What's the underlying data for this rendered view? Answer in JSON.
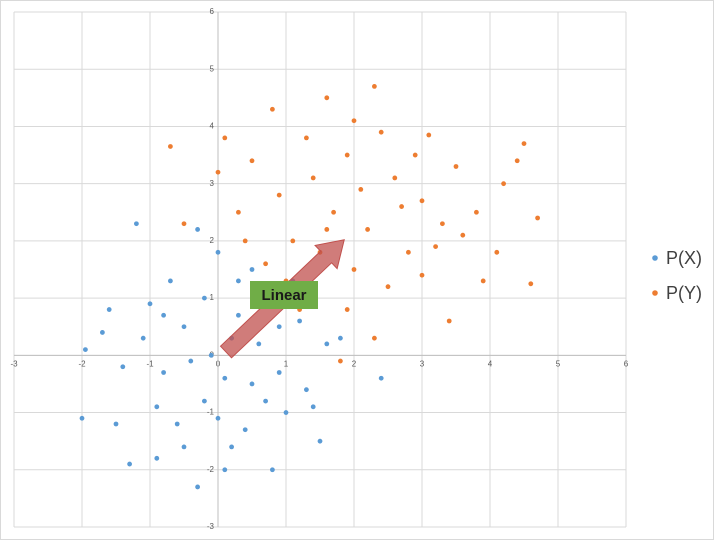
{
  "chart_data": {
    "type": "scatter",
    "xlim": [
      -3,
      6
    ],
    "ylim": [
      -3,
      6
    ],
    "xticks": [
      -3,
      -2,
      -1,
      0,
      1,
      2,
      3,
      4,
      5,
      6
    ],
    "yticks": [
      -3,
      -2,
      -1,
      0,
      1,
      2,
      3,
      4,
      5,
      6
    ],
    "grid": true,
    "legend": "right",
    "annotations": [
      "Linear"
    ],
    "series": [
      {
        "name": "P(X)",
        "color": "#5b9bd5",
        "x": [
          -1.95,
          -2.0,
          -1.6,
          -1.2,
          -1.3,
          -0.9,
          -0.3,
          0.1,
          0.8,
          1.5,
          1.0,
          0.5,
          0.2,
          -0.5,
          -0.8,
          -1.0,
          0.3,
          0.7,
          1.2,
          1.6,
          2.4,
          -0.2,
          -0.6,
          0.4,
          0.9,
          -1.4,
          -1.1,
          0.0,
          -0.3,
          0.6,
          1.3,
          -0.4,
          0.1,
          -0.7,
          0.2,
          1.1,
          -1.5,
          -0.9,
          0.7,
          0.3,
          -0.1,
          1.8,
          -1.7,
          0.5,
          -0.2,
          0.9,
          -0.5,
          1.4,
          -0.8,
          0.0
        ],
        "y": [
          0.1,
          -1.1,
          0.8,
          2.3,
          -1.9,
          -1.8,
          -2.3,
          -2.0,
          -2.0,
          -1.5,
          -1.0,
          -0.5,
          0.3,
          0.5,
          -0.3,
          0.9,
          1.3,
          1.0,
          0.6,
          0.2,
          -0.4,
          -0.8,
          -1.2,
          -1.3,
          -0.3,
          -0.2,
          0.3,
          1.8,
          2.2,
          0.2,
          -0.6,
          -0.1,
          -0.4,
          1.3,
          -1.6,
          1.3,
          -1.2,
          -0.9,
          -0.8,
          0.7,
          0.0,
          0.3,
          0.4,
          1.5,
          1.0,
          0.5,
          -1.6,
          -0.9,
          0.7,
          -1.1
        ]
      },
      {
        "name": "P(Y)",
        "color": "#ed7d31",
        "x": [
          -0.7,
          0.1,
          0.8,
          1.6,
          2.3,
          3.1,
          4.5,
          4.7,
          4.6,
          3.9,
          3.4,
          2.3,
          1.8,
          1.2,
          0.7,
          0.3,
          0.0,
          -0.5,
          0.9,
          1.4,
          1.9,
          2.6,
          3.0,
          3.6,
          4.2,
          2.2,
          1.7,
          2.8,
          2.5,
          1.5,
          2.0,
          3.2,
          3.8,
          4.1,
          1.1,
          0.5,
          2.7,
          1.3,
          2.4,
          3.5,
          1.0,
          2.1,
          1.6,
          3.0,
          0.4,
          2.9,
          1.9,
          4.4,
          3.3,
          2.0
        ],
        "y": [
          3.65,
          3.8,
          4.3,
          4.5,
          4.7,
          3.85,
          3.7,
          2.4,
          1.25,
          1.3,
          0.6,
          0.3,
          -0.1,
          0.8,
          1.6,
          2.5,
          3.2,
          2.3,
          2.8,
          3.1,
          3.5,
          3.1,
          2.7,
          2.1,
          3.0,
          2.2,
          2.5,
          1.8,
          1.2,
          1.8,
          1.5,
          1.9,
          2.5,
          1.8,
          2.0,
          3.4,
          2.6,
          3.8,
          3.9,
          3.3,
          1.3,
          2.9,
          2.2,
          1.4,
          2.0,
          3.5,
          0.8,
          3.4,
          2.3,
          4.1
        ]
      }
    ]
  }
}
